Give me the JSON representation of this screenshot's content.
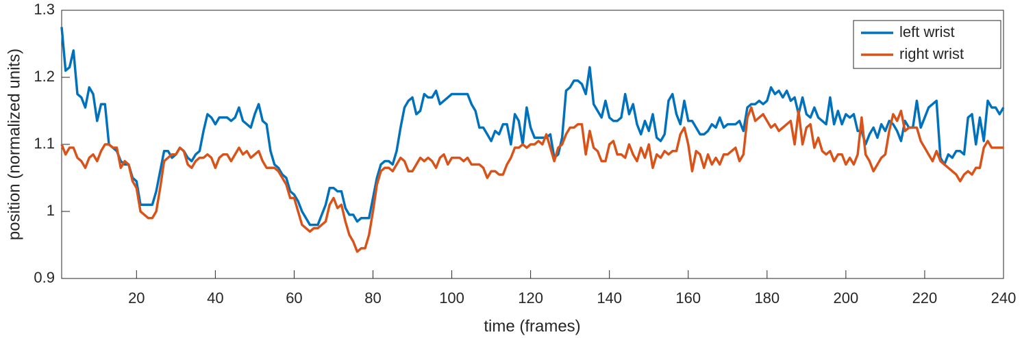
{
  "chart_data": {
    "type": "line",
    "xlabel": "time (frames)",
    "ylabel": "position (normalized units)",
    "x": [
      1,
      2,
      3,
      4,
      5,
      6,
      7,
      8,
      9,
      10,
      11,
      12,
      13,
      14,
      15,
      16,
      17,
      18,
      19,
      20,
      21,
      22,
      23,
      24,
      25,
      26,
      27,
      28,
      29,
      30,
      31,
      32,
      33,
      34,
      35,
      36,
      37,
      38,
      39,
      40,
      41,
      42,
      43,
      44,
      45,
      46,
      47,
      48,
      49,
      50,
      51,
      52,
      53,
      54,
      55,
      56,
      57,
      58,
      59,
      60,
      61,
      62,
      63,
      64,
      65,
      66,
      67,
      68,
      69,
      70,
      71,
      72,
      73,
      74,
      75,
      76,
      77,
      78,
      79,
      80,
      81,
      82,
      83,
      84,
      85,
      86,
      87,
      88,
      89,
      90,
      91,
      92,
      93,
      94,
      95,
      96,
      97,
      98,
      99,
      100,
      101,
      102,
      103,
      104,
      105,
      106,
      107,
      108,
      109,
      110,
      111,
      112,
      113,
      114,
      115,
      116,
      117,
      118,
      119,
      120,
      121,
      122,
      123,
      124,
      125,
      126,
      127,
      128,
      129,
      130,
      131,
      132,
      133,
      134,
      135,
      136,
      137,
      138,
      139,
      140,
      141,
      142,
      143,
      144,
      145,
      146,
      147,
      148,
      149,
      150,
      151,
      152,
      153,
      154,
      155,
      156,
      157,
      158,
      159,
      160,
      161,
      162,
      163,
      164,
      165,
      166,
      167,
      168,
      169,
      170,
      171,
      172,
      173,
      174,
      175,
      176,
      177,
      178,
      179,
      180,
      181,
      182,
      183,
      184,
      185,
      186,
      187,
      188,
      189,
      190,
      191,
      192,
      193,
      194,
      195,
      196,
      197,
      198,
      199,
      200,
      201,
      202,
      203,
      204,
      205,
      206,
      207,
      208,
      209,
      210,
      211,
      212,
      213,
      214,
      215,
      216,
      217,
      218,
      219,
      220,
      221,
      222,
      223,
      224,
      225,
      226,
      227,
      228,
      229,
      230,
      231,
      232,
      233,
      234,
      235,
      236,
      237,
      238,
      239,
      240
    ],
    "series": [
      {
        "name": "left wrist",
        "color": "#0072BD",
        "values": [
          1.275,
          1.21,
          1.215,
          1.24,
          1.175,
          1.17,
          1.155,
          1.185,
          1.175,
          1.135,
          1.16,
          1.16,
          1.1,
          1.095,
          1.09,
          1.075,
          1.07,
          1.07,
          1.05,
          1.045,
          1.01,
          1.01,
          1.01,
          1.01,
          1.03,
          1.06,
          1.09,
          1.09,
          1.08,
          1.085,
          1.095,
          1.09,
          1.08,
          1.075,
          1.085,
          1.09,
          1.12,
          1.145,
          1.14,
          1.13,
          1.14,
          1.14,
          1.14,
          1.135,
          1.14,
          1.155,
          1.135,
          1.13,
          1.125,
          1.145,
          1.16,
          1.135,
          1.13,
          1.09,
          1.07,
          1.065,
          1.055,
          1.05,
          1.03,
          1.025,
          1.015,
          1.0,
          0.99,
          0.98,
          0.98,
          0.98,
          0.995,
          1.01,
          1.035,
          1.035,
          1.03,
          1.03,
          1.005,
          0.995,
          0.995,
          0.985,
          0.99,
          0.99,
          0.99,
          1.02,
          1.05,
          1.07,
          1.075,
          1.075,
          1.07,
          1.09,
          1.125,
          1.155,
          1.165,
          1.17,
          1.145,
          1.15,
          1.175,
          1.17,
          1.17,
          1.18,
          1.16,
          1.165,
          1.17,
          1.175,
          1.175,
          1.175,
          1.175,
          1.175,
          1.16,
          1.15,
          1.125,
          1.125,
          1.115,
          1.105,
          1.12,
          1.115,
          1.13,
          1.13,
          1.1,
          1.145,
          1.135,
          1.1,
          1.155,
          1.125,
          1.11,
          1.11,
          1.11,
          1.11,
          1.115,
          1.08,
          1.085,
          1.11,
          1.18,
          1.185,
          1.195,
          1.195,
          1.19,
          1.175,
          1.215,
          1.16,
          1.15,
          1.14,
          1.165,
          1.14,
          1.135,
          1.135,
          1.14,
          1.175,
          1.145,
          1.16,
          1.13,
          1.115,
          1.135,
          1.12,
          1.145,
          1.11,
          1.105,
          1.115,
          1.165,
          1.175,
          1.145,
          1.13,
          1.165,
          1.135,
          1.135,
          1.125,
          1.115,
          1.115,
          1.12,
          1.13,
          1.125,
          1.14,
          1.125,
          1.13,
          1.13,
          1.13,
          1.135,
          1.12,
          1.155,
          1.16,
          1.16,
          1.165,
          1.16,
          1.165,
          1.185,
          1.175,
          1.18,
          1.17,
          1.18,
          1.165,
          1.17,
          1.145,
          1.17,
          1.145,
          1.14,
          1.155,
          1.14,
          1.135,
          1.13,
          1.17,
          1.13,
          1.15,
          1.13,
          1.145,
          1.14,
          1.145,
          1.12,
          1.12,
          1.1,
          1.115,
          1.125,
          1.11,
          1.13,
          1.12,
          1.135,
          1.13,
          1.12,
          1.105,
          1.135,
          1.125,
          1.125,
          1.165,
          1.125,
          1.14,
          1.155,
          1.16,
          1.165,
          1.08,
          1.07,
          1.085,
          1.08,
          1.09,
          1.09,
          1.085,
          1.14,
          1.145,
          1.1,
          1.14,
          1.105,
          1.165,
          1.155,
          1.155,
          1.145,
          1.155
        ]
      },
      {
        "name": "right wrist",
        "color": "#D95319",
        "values": [
          1.1,
          1.085,
          1.095,
          1.095,
          1.08,
          1.075,
          1.065,
          1.08,
          1.085,
          1.075,
          1.09,
          1.1,
          1.1,
          1.095,
          1.095,
          1.065,
          1.075,
          1.07,
          1.045,
          1.035,
          1.0,
          0.995,
          0.99,
          0.99,
          1.0,
          1.035,
          1.075,
          1.08,
          1.085,
          1.085,
          1.095,
          1.09,
          1.07,
          1.065,
          1.075,
          1.08,
          1.08,
          1.085,
          1.08,
          1.065,
          1.08,
          1.085,
          1.085,
          1.075,
          1.085,
          1.095,
          1.085,
          1.09,
          1.08,
          1.085,
          1.09,
          1.075,
          1.065,
          1.065,
          1.065,
          1.06,
          1.05,
          1.04,
          1.02,
          1.02,
          1.0,
          0.98,
          0.975,
          0.97,
          0.975,
          0.975,
          0.98,
          0.985,
          1.01,
          1.02,
          1.005,
          1.01,
          0.985,
          0.965,
          0.955,
          0.94,
          0.945,
          0.945,
          0.965,
          1.0,
          1.04,
          1.06,
          1.065,
          1.065,
          1.06,
          1.07,
          1.08,
          1.075,
          1.06,
          1.06,
          1.07,
          1.08,
          1.075,
          1.08,
          1.075,
          1.065,
          1.08,
          1.085,
          1.07,
          1.08,
          1.08,
          1.08,
          1.075,
          1.08,
          1.07,
          1.07,
          1.07,
          1.065,
          1.05,
          1.06,
          1.06,
          1.055,
          1.055,
          1.07,
          1.08,
          1.095,
          1.095,
          1.1,
          1.095,
          1.1,
          1.1,
          1.105,
          1.1,
          1.115,
          1.095,
          1.075,
          1.095,
          1.1,
          1.115,
          1.125,
          1.125,
          1.13,
          1.13,
          1.085,
          1.12,
          1.095,
          1.09,
          1.075,
          1.075,
          1.1,
          1.105,
          1.085,
          1.085,
          1.08,
          1.1,
          1.085,
          1.075,
          1.095,
          1.08,
          1.1,
          1.065,
          1.085,
          1.08,
          1.09,
          1.085,
          1.09,
          1.09,
          1.115,
          1.125,
          1.1,
          1.06,
          1.09,
          1.085,
          1.065,
          1.085,
          1.07,
          1.08,
          1.07,
          1.085,
          1.085,
          1.09,
          1.095,
          1.075,
          1.085,
          1.14,
          1.155,
          1.135,
          1.14,
          1.145,
          1.135,
          1.125,
          1.13,
          1.12,
          1.125,
          1.13,
          1.135,
          1.1,
          1.15,
          1.1,
          1.125,
          1.13,
          1.095,
          1.11,
          1.09,
          1.085,
          1.09,
          1.075,
          1.085,
          1.085,
          1.07,
          1.08,
          1.07,
          1.085,
          1.14,
          1.085,
          1.075,
          1.06,
          1.07,
          1.08,
          1.085,
          1.12,
          1.145,
          1.135,
          1.15,
          1.12,
          1.125,
          1.125,
          1.125,
          1.105,
          1.095,
          1.085,
          1.075,
          1.09,
          1.075,
          1.07,
          1.065,
          1.06,
          1.055,
          1.045,
          1.055,
          1.06,
          1.055,
          1.065,
          1.065,
          1.095,
          1.105,
          1.095,
          1.095,
          1.095,
          1.095
        ]
      }
    ],
    "xlim": [
      1,
      240
    ],
    "xticks": [
      20,
      40,
      60,
      80,
      100,
      120,
      140,
      160,
      180,
      200,
      220,
      240
    ],
    "ylim": [
      0.9,
      1.3
    ],
    "yticks": [
      0.9,
      1,
      1.1,
      1.2,
      1.3
    ],
    "legend": "upper right"
  }
}
